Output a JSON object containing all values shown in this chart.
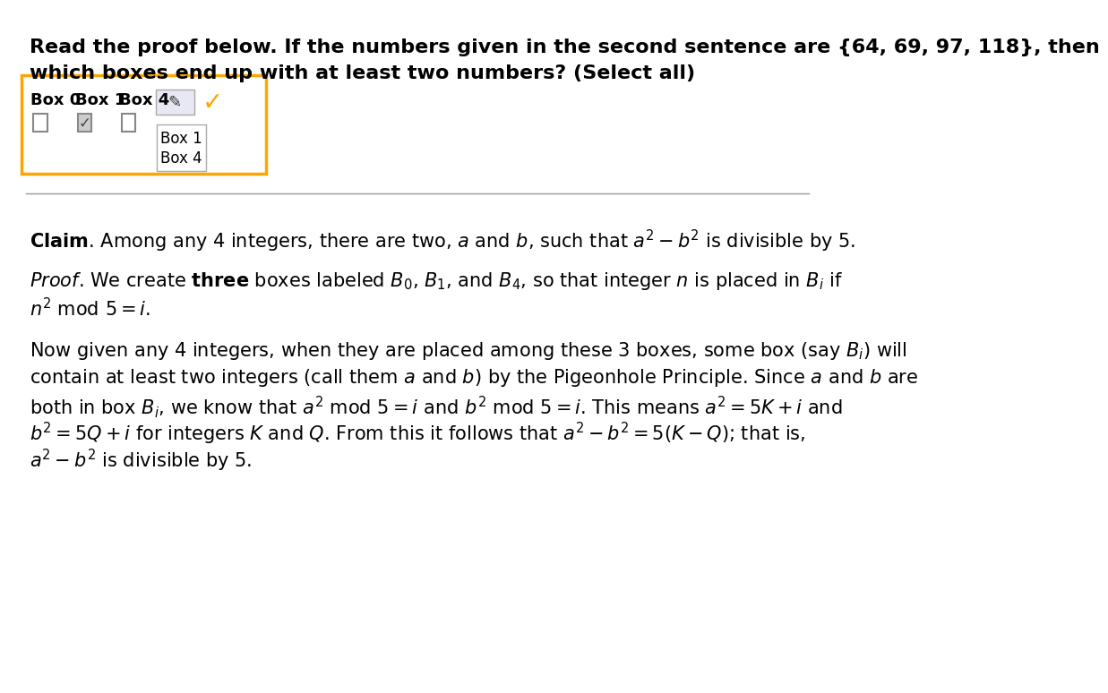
{
  "bg_color": "#ffffff",
  "question_text_line1": "Read the proof below. If the numbers given in the second sentence are {64, 69, 97, 118}, then",
  "question_text_line2": "which boxes end up with at least two numbers? (Select all)",
  "box_border_color": "#FFA500",
  "checkbox_labels": [
    "Box 0",
    "Box 1",
    "Box 4"
  ],
  "checkbox_states": [
    false,
    true,
    false
  ],
  "dropdown_items": [
    "Box 1",
    "Box 4"
  ],
  "checkmark_color": "#FFA500",
  "separator_color": "#999999",
  "dropdown_bg": "#e8e8f5",
  "checkbox_checked_bg": "#cccccc",
  "checkbox_unchecked_bg": "#ffffff",
  "checkbox_border": "#888888"
}
